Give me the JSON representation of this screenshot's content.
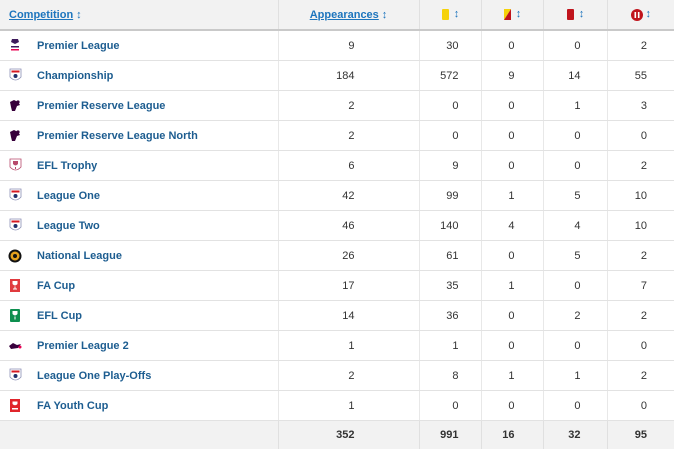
{
  "table": {
    "headers": {
      "competition": "Competition",
      "appearances": "Appearances"
    },
    "icon_colors": {
      "yellow": "#f5d20a",
      "red": "#c0141c",
      "sub_off": "#c0141c"
    },
    "rows": [
      {
        "competition": "Premier League",
        "logo": "premier-league-logo",
        "apps": "9",
        "yellow": "30",
        "yellow_red": "0",
        "red": "0",
        "sub_off": "2"
      },
      {
        "competition": "Championship",
        "logo": "efl-logo",
        "apps": "184",
        "yellow": "572",
        "yellow_red": "9",
        "red": "14",
        "sub_off": "55"
      },
      {
        "competition": "Premier Reserve League",
        "logo": "premier-reserve-logo",
        "apps": "2",
        "yellow": "0",
        "yellow_red": "0",
        "red": "1",
        "sub_off": "3"
      },
      {
        "competition": "Premier Reserve League North",
        "logo": "premier-reserve-logo",
        "apps": "2",
        "yellow": "0",
        "yellow_red": "0",
        "red": "0",
        "sub_off": "0"
      },
      {
        "competition": "EFL Trophy",
        "logo": "efl-trophy-logo",
        "apps": "6",
        "yellow": "9",
        "yellow_red": "0",
        "red": "0",
        "sub_off": "2"
      },
      {
        "competition": "League One",
        "logo": "efl-logo",
        "apps": "42",
        "yellow": "99",
        "yellow_red": "1",
        "red": "5",
        "sub_off": "10"
      },
      {
        "competition": "League Two",
        "logo": "efl-logo",
        "apps": "46",
        "yellow": "140",
        "yellow_red": "4",
        "red": "4",
        "sub_off": "10"
      },
      {
        "competition": "National League",
        "logo": "national-league-logo",
        "apps": "26",
        "yellow": "61",
        "yellow_red": "0",
        "red": "5",
        "sub_off": "2"
      },
      {
        "competition": "FA Cup",
        "logo": "fa-cup-logo",
        "apps": "17",
        "yellow": "35",
        "yellow_red": "1",
        "red": "0",
        "sub_off": "7"
      },
      {
        "competition": "EFL Cup",
        "logo": "efl-cup-logo",
        "apps": "14",
        "yellow": "36",
        "yellow_red": "0",
        "red": "2",
        "sub_off": "2"
      },
      {
        "competition": "Premier League 2",
        "logo": "premier-league-2-logo",
        "apps": "1",
        "yellow": "1",
        "yellow_red": "0",
        "red": "0",
        "sub_off": "0"
      },
      {
        "competition": "League One Play-Offs",
        "logo": "efl-logo",
        "apps": "2",
        "yellow": "8",
        "yellow_red": "1",
        "red": "1",
        "sub_off": "2"
      },
      {
        "competition": "FA Youth Cup",
        "logo": "fa-youth-cup-logo",
        "apps": "1",
        "yellow": "0",
        "yellow_red": "0",
        "red": "0",
        "sub_off": "0"
      }
    ],
    "totals": {
      "apps": "352",
      "yellow": "991",
      "yellow_red": "16",
      "red": "32",
      "sub_off": "95"
    }
  }
}
